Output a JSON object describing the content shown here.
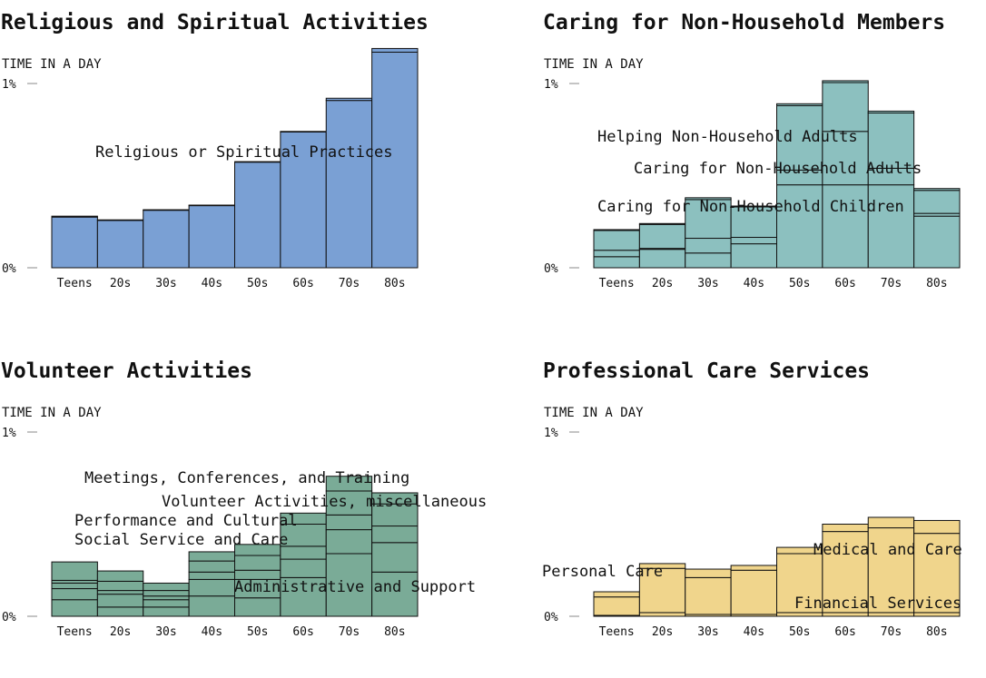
{
  "chart_data": [
    {
      "type": "stacked-bar",
      "title": "Religious and Spiritual Activities",
      "y_label": "TIME IN A DAY",
      "categories": [
        "Teens",
        "20s",
        "30s",
        "40s",
        "50s",
        "60s",
        "70s",
        "80s"
      ],
      "ylim": [
        0,
        1.2
      ],
      "yticks": [
        {
          "value": 0,
          "label": "0%"
        },
        {
          "value": 1,
          "label": "1%"
        }
      ],
      "series": [
        {
          "name": "Religious or Spiritual Practices",
          "color": "#7aa0d4",
          "values": [
            0.275,
            0.257,
            0.312,
            0.337,
            0.573,
            0.737,
            0.908,
            1.17
          ]
        },
        {
          "color": "#7aa0d4",
          "values": [
            0.005,
            0.003,
            0.003,
            0.003,
            0.003,
            0.003,
            0.012,
            0.02
          ]
        }
      ]
    },
    {
      "type": "stacked-bar",
      "title": "Caring for Non-Household Members",
      "y_label": "TIME IN A DAY",
      "categories": [
        "Teens",
        "20s",
        "30s",
        "40s",
        "50s",
        "60s",
        "70s",
        "80s"
      ],
      "ylim": [
        0,
        1.2
      ],
      "yticks": [
        {
          "value": 0,
          "label": "0%"
        },
        {
          "value": 1,
          "label": "1%"
        }
      ],
      "series": [
        {
          "name": "Caring for Non-Household Children",
          "color": "#8cc0bf",
          "values": [
            0.06,
            0.1,
            0.08,
            0.13,
            0.45,
            0.45,
            0.45,
            0.28
          ]
        },
        {
          "name": "Caring for Non-Household Adults",
          "color": "#8cc0bf",
          "values": [
            0.035,
            0.005,
            0.08,
            0.035,
            0.08,
            0.29,
            0.09,
            0.015
          ]
        },
        {
          "name": "Helping Non-Household Adults",
          "color": "#8cc0bf",
          "values": [
            0.107,
            0.13,
            0.21,
            0.165,
            0.35,
            0.265,
            0.3,
            0.125
          ]
        },
        {
          "color": "#8cc0bf",
          "values": [
            0.005,
            0.005,
            0.01,
            0.005,
            0.01,
            0.01,
            0.01,
            0.01
          ]
        }
      ]
    },
    {
      "type": "stacked-bar",
      "title": "Volunteer Activities",
      "y_label": "TIME IN A DAY",
      "categories": [
        "Teens",
        "20s",
        "30s",
        "40s",
        "50s",
        "60s",
        "70s",
        "80s"
      ],
      "ylim": [
        0,
        1.2
      ],
      "yticks": [
        {
          "value": 0,
          "label": "0%"
        },
        {
          "value": 1,
          "label": "1%"
        }
      ],
      "series": [
        {
          "name": "Administrative and Support",
          "color": "#7aab97",
          "values": [
            0.09,
            0.05,
            0.05,
            0.11,
            0.1,
            0.21,
            0.34,
            0.24
          ]
        },
        {
          "name": "Social Service and Care",
          "color": "#7aab97",
          "values": [
            0.06,
            0.07,
            0.04,
            0.09,
            0.1,
            0.1,
            0.13,
            0.16
          ]
        },
        {
          "name": "Performance and Cultural",
          "color": "#7aab97",
          "values": [
            0.03,
            0.02,
            0.02,
            0.04,
            0.05,
            0.07,
            0.08,
            0.09
          ]
        },
        {
          "name": "Volunteer Activities, miscellaneous",
          "color": "#7aab97",
          "values": [
            0.015,
            0.05,
            0.03,
            0.06,
            0.08,
            0.12,
            0.13,
            0.12
          ]
        },
        {
          "name": "Meetings, Conferences, and Training",
          "color": "#7aab97",
          "values": [
            0.1,
            0.056,
            0.04,
            0.05,
            0.06,
            0.06,
            0.08,
            0.06
          ]
        }
      ]
    },
    {
      "type": "stacked-bar",
      "title": "Professional Care Services",
      "y_label": "TIME IN A DAY",
      "categories": [
        "Teens",
        "20s",
        "30s",
        "40s",
        "50s",
        "60s",
        "70s",
        "80s"
      ],
      "ylim": [
        0,
        1.2
      ],
      "yticks": [
        {
          "value": 0,
          "label": "0%"
        },
        {
          "value": 1,
          "label": "1%"
        }
      ],
      "series": [
        {
          "name": "Financial Services",
          "color": "#f0d58c",
          "values": [
            0.005,
            0.02,
            0.01,
            0.01,
            0.02,
            0.02,
            0.02,
            0.02
          ]
        },
        {
          "name": "Personal Care",
          "color": "#f0d58c",
          "values": [
            0.1,
            0.24,
            0.2,
            0.24,
            0.32,
            0.44,
            0.46,
            0.43
          ]
        },
        {
          "name": "Medical and Care",
          "color": "#f0d58c",
          "values": [
            0.028,
            0.026,
            0.046,
            0.026,
            0.034,
            0.04,
            0.057,
            0.07
          ]
        }
      ]
    }
  ]
}
